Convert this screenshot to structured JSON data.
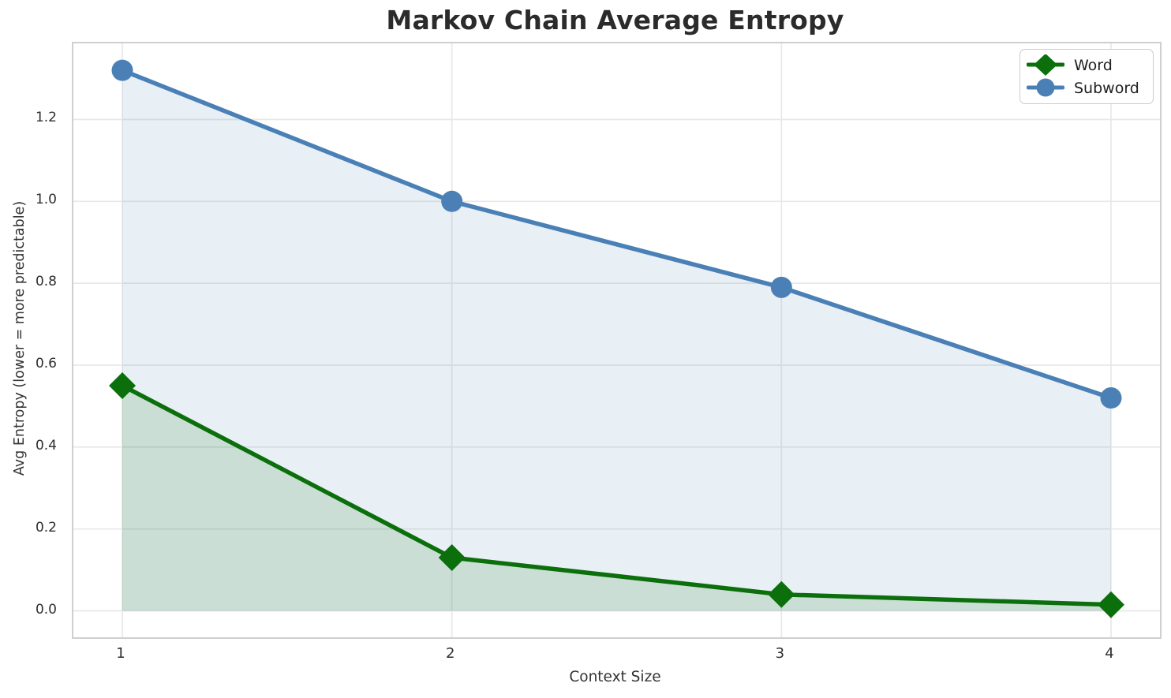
{
  "figure": {
    "title": "Markov Chain Average Entropy",
    "xlabel": "Context Size",
    "ylabel": "Avg Entropy (lower = more predictable)"
  },
  "chart_data": {
    "type": "line",
    "title": "Markov Chain Average Entropy",
    "xlabel": "Context Size",
    "ylabel": "Avg Entropy (lower = more predictable)",
    "x": [
      1,
      2,
      3,
      4
    ],
    "series": [
      {
        "name": "Word",
        "marker": "diamond",
        "color": "#0b6f0b",
        "fill_color": "rgba(11,111,11,0.13)",
        "values": [
          0.55,
          0.13,
          0.04,
          0.015
        ]
      },
      {
        "name": "Subword",
        "marker": "circle",
        "color": "#4a80b5",
        "fill_color": "rgba(74,128,181,0.13)",
        "values": [
          1.32,
          1.0,
          0.79,
          0.52
        ]
      }
    ],
    "fill_to_zero": true,
    "xticks": [
      "1",
      "2",
      "3",
      "4"
    ],
    "yticks": [
      "0.0",
      "0.2",
      "0.4",
      "0.6",
      "0.8",
      "1.0",
      "1.2"
    ],
    "xlim": [
      0.8515,
      4.1485
    ],
    "ylim": [
      -0.0645,
      1.3858
    ],
    "grid": true,
    "grid_color": "#e8e8e8",
    "legend_position": "upper right",
    "legend_order": [
      "Word",
      "Subword"
    ]
  }
}
